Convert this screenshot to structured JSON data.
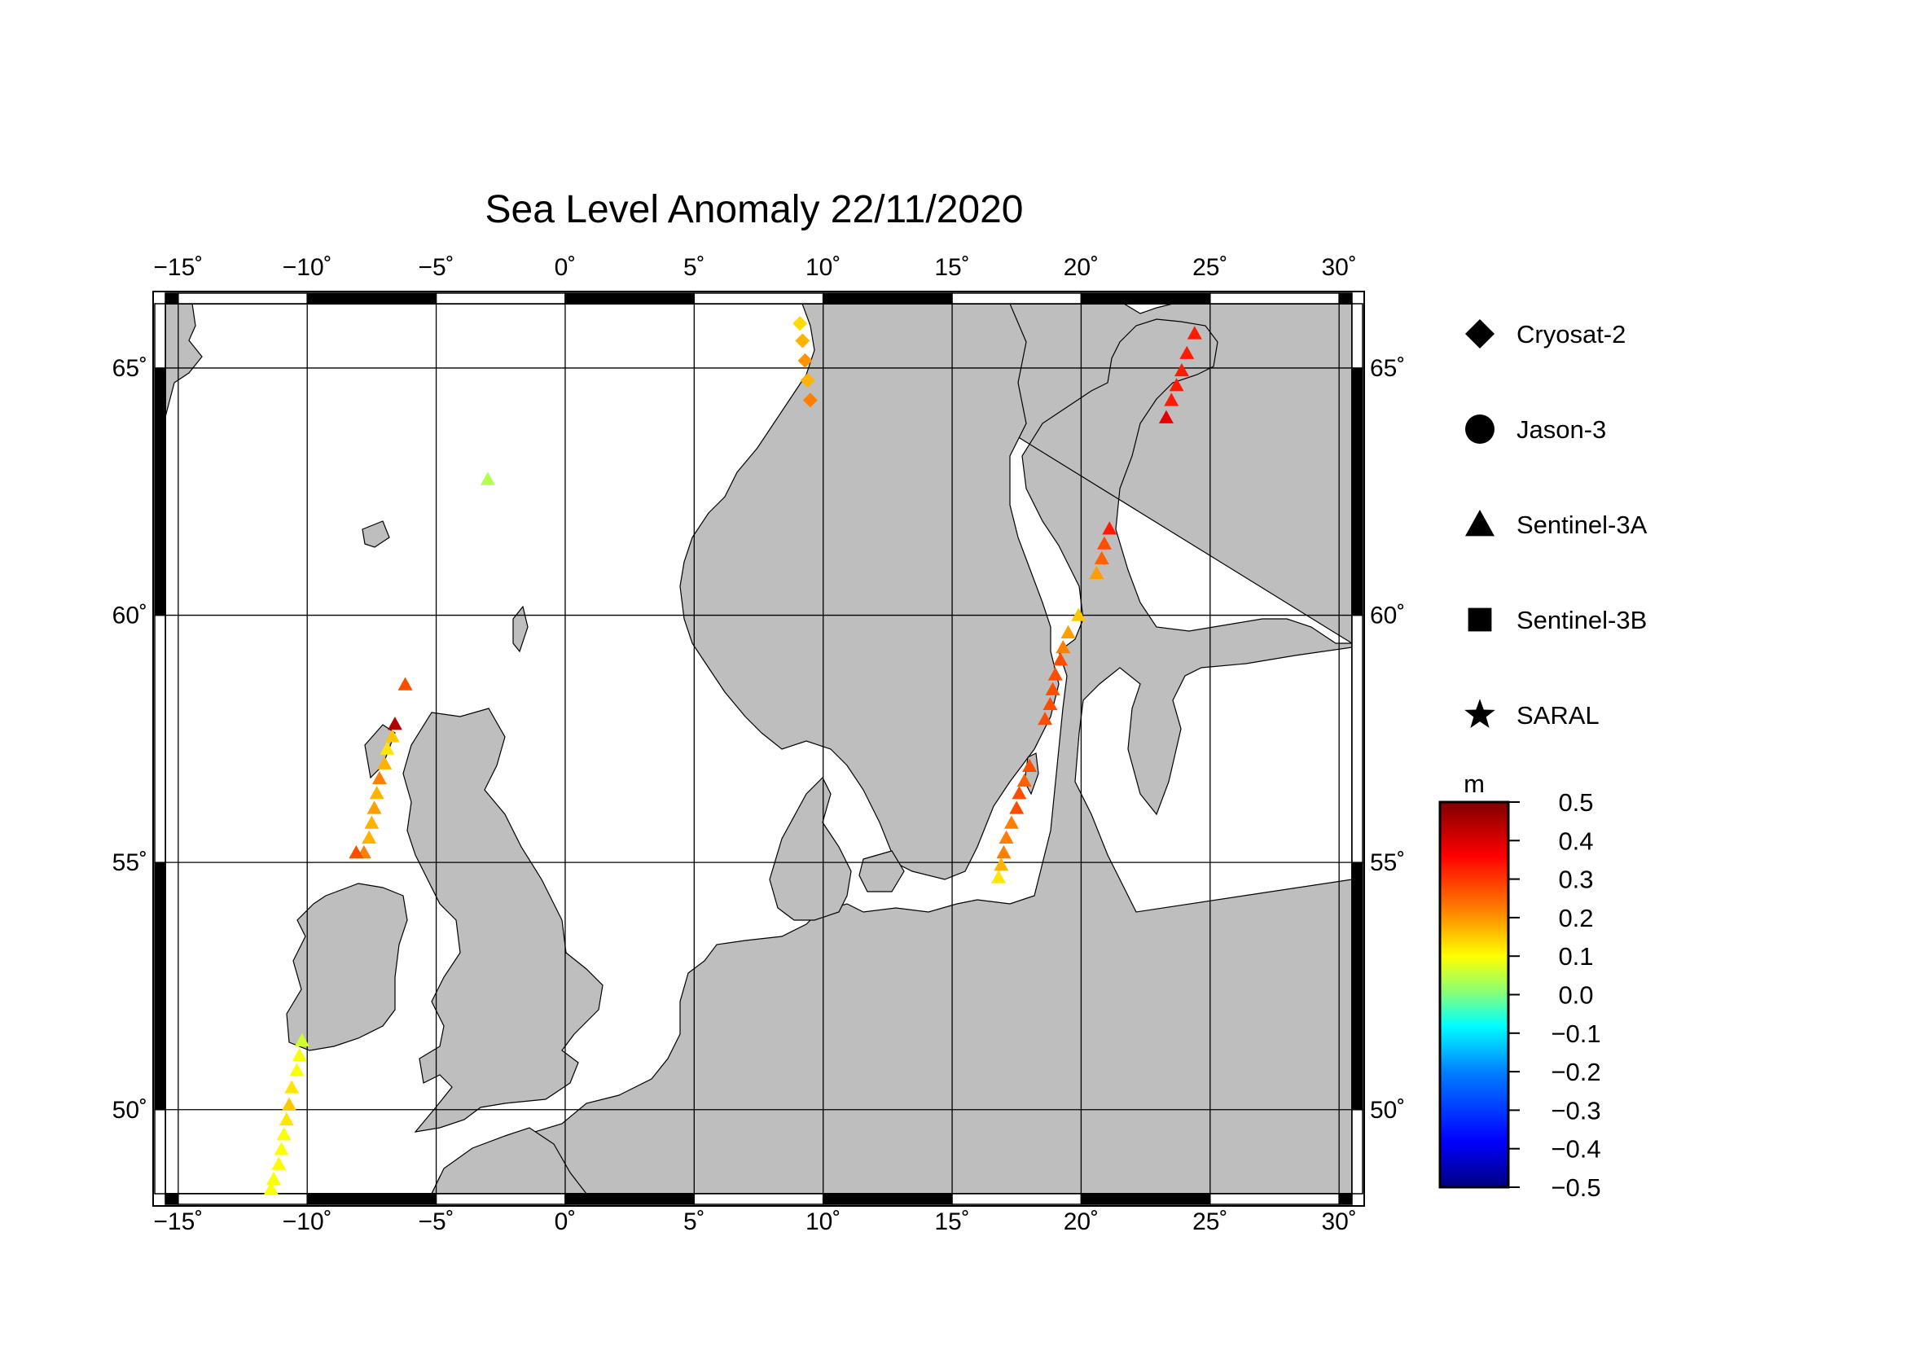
{
  "title": "Sea Level Anomaly 22/11/2020",
  "map": {
    "lon_range": [
      -15.5,
      30.5
    ],
    "lat_range": [
      48.3,
      66.3
    ],
    "lon_ticks": [
      {
        "v": -15,
        "label": "−15˚"
      },
      {
        "v": -10,
        "label": "−10˚"
      },
      {
        "v": -5,
        "label": "−5˚"
      },
      {
        "v": 0,
        "label": "0˚"
      },
      {
        "v": 5,
        "label": "5˚"
      },
      {
        "v": 10,
        "label": "10˚"
      },
      {
        "v": 15,
        "label": "15˚"
      },
      {
        "v": 20,
        "label": "20˚"
      },
      {
        "v": 25,
        "label": "25˚"
      },
      {
        "v": 30,
        "label": "30˚"
      }
    ],
    "lat_ticks": [
      {
        "v": 50,
        "label": "50˚"
      },
      {
        "v": 55,
        "label": "55˚"
      },
      {
        "v": 60,
        "label": "60˚"
      },
      {
        "v": 65,
        "label": "65˚"
      }
    ],
    "land_color": "#bebebe",
    "ocean_color": "#ffffff"
  },
  "legend": {
    "items": [
      {
        "symbol": "diamond",
        "label": "Cryosat-2"
      },
      {
        "symbol": "circle",
        "label": "Jason-3"
      },
      {
        "symbol": "triangle",
        "label": "Sentinel-3A"
      },
      {
        "symbol": "square",
        "label": "Sentinel-3B"
      },
      {
        "symbol": "star",
        "label": "SARAL"
      }
    ]
  },
  "colorbar": {
    "unit": "m",
    "min": -0.5,
    "max": 0.5,
    "tick_labels": [
      "0.5",
      "0.4",
      "0.3",
      "0.2",
      "0.1",
      "0.0",
      "−0.1",
      "−0.2",
      "−0.3",
      "−0.4",
      "−0.5"
    ],
    "colors": [
      "#000080",
      "#0000ff",
      "#0080ff",
      "#00ffff",
      "#80ff80",
      "#ffff00",
      "#ff8000",
      "#ff0000",
      "#800000"
    ]
  },
  "chart_data": {
    "type": "scatter",
    "title": "Sea Level Anomaly 22/11/2020",
    "xlabel": "",
    "ylabel": "",
    "xlim": [
      -15.5,
      30.5
    ],
    "ylim": [
      48.3,
      66.3
    ],
    "grid": true,
    "legend_placement": "right",
    "series": [
      {
        "name": "Cryosat-2",
        "symbol": "diamond",
        "points": [
          [
            9.1,
            65.9,
            0.16
          ],
          [
            9.2,
            65.55,
            0.2
          ],
          [
            9.3,
            65.15,
            0.23
          ],
          [
            9.4,
            64.75,
            0.2
          ],
          [
            9.5,
            64.35,
            0.25
          ]
        ]
      },
      {
        "name": "Sentinel-3A",
        "symbol": "triangle",
        "points": [
          [
            -3.0,
            62.75,
            0.05
          ],
          [
            -6.2,
            58.6,
            0.3
          ],
          [
            -6.6,
            57.8,
            0.45
          ],
          [
            -6.7,
            57.55,
            0.18
          ],
          [
            -6.9,
            57.3,
            0.15
          ],
          [
            -7.0,
            57.0,
            0.2
          ],
          [
            -7.2,
            56.7,
            0.25
          ],
          [
            -7.3,
            56.4,
            0.2
          ],
          [
            -7.4,
            56.1,
            0.22
          ],
          [
            -7.5,
            55.8,
            0.2
          ],
          [
            -7.6,
            55.5,
            0.2
          ],
          [
            -7.8,
            55.2,
            0.25
          ],
          [
            -8.1,
            55.2,
            0.3
          ],
          [
            -10.2,
            51.4,
            0.08
          ],
          [
            -10.3,
            51.1,
            0.12
          ],
          [
            -10.4,
            50.8,
            0.12
          ],
          [
            -10.6,
            50.45,
            0.15
          ],
          [
            -10.7,
            50.1,
            0.18
          ],
          [
            -10.8,
            49.8,
            0.15
          ],
          [
            -10.9,
            49.5,
            0.12
          ],
          [
            -11.0,
            49.2,
            0.12
          ],
          [
            -11.1,
            48.9,
            0.13
          ],
          [
            -11.3,
            48.6,
            0.12
          ],
          [
            -11.4,
            48.4,
            0.12
          ],
          [
            16.8,
            54.7,
            0.15
          ],
          [
            16.9,
            54.95,
            0.2
          ],
          [
            17.0,
            55.2,
            0.25
          ],
          [
            17.1,
            55.5,
            0.25
          ],
          [
            17.3,
            55.8,
            0.25
          ],
          [
            17.5,
            56.1,
            0.3
          ],
          [
            17.6,
            56.4,
            0.3
          ],
          [
            17.8,
            56.65,
            0.28
          ],
          [
            18.0,
            56.95,
            0.3
          ],
          [
            18.6,
            57.9,
            0.3
          ],
          [
            18.8,
            58.2,
            0.3
          ],
          [
            18.9,
            58.5,
            0.3
          ],
          [
            19.0,
            58.8,
            0.3
          ],
          [
            19.2,
            59.1,
            0.3
          ],
          [
            19.3,
            59.35,
            0.25
          ],
          [
            19.5,
            59.65,
            0.22
          ],
          [
            19.9,
            60.0,
            0.18
          ],
          [
            20.6,
            60.85,
            0.22
          ],
          [
            20.8,
            61.15,
            0.28
          ],
          [
            20.9,
            61.45,
            0.3
          ],
          [
            21.1,
            61.75,
            0.35
          ],
          [
            23.3,
            64.0,
            0.4
          ],
          [
            23.5,
            64.35,
            0.35
          ],
          [
            23.7,
            64.65,
            0.35
          ],
          [
            23.9,
            64.95,
            0.35
          ],
          [
            24.1,
            65.3,
            0.35
          ],
          [
            24.4,
            65.7,
            0.35
          ]
        ]
      }
    ]
  }
}
